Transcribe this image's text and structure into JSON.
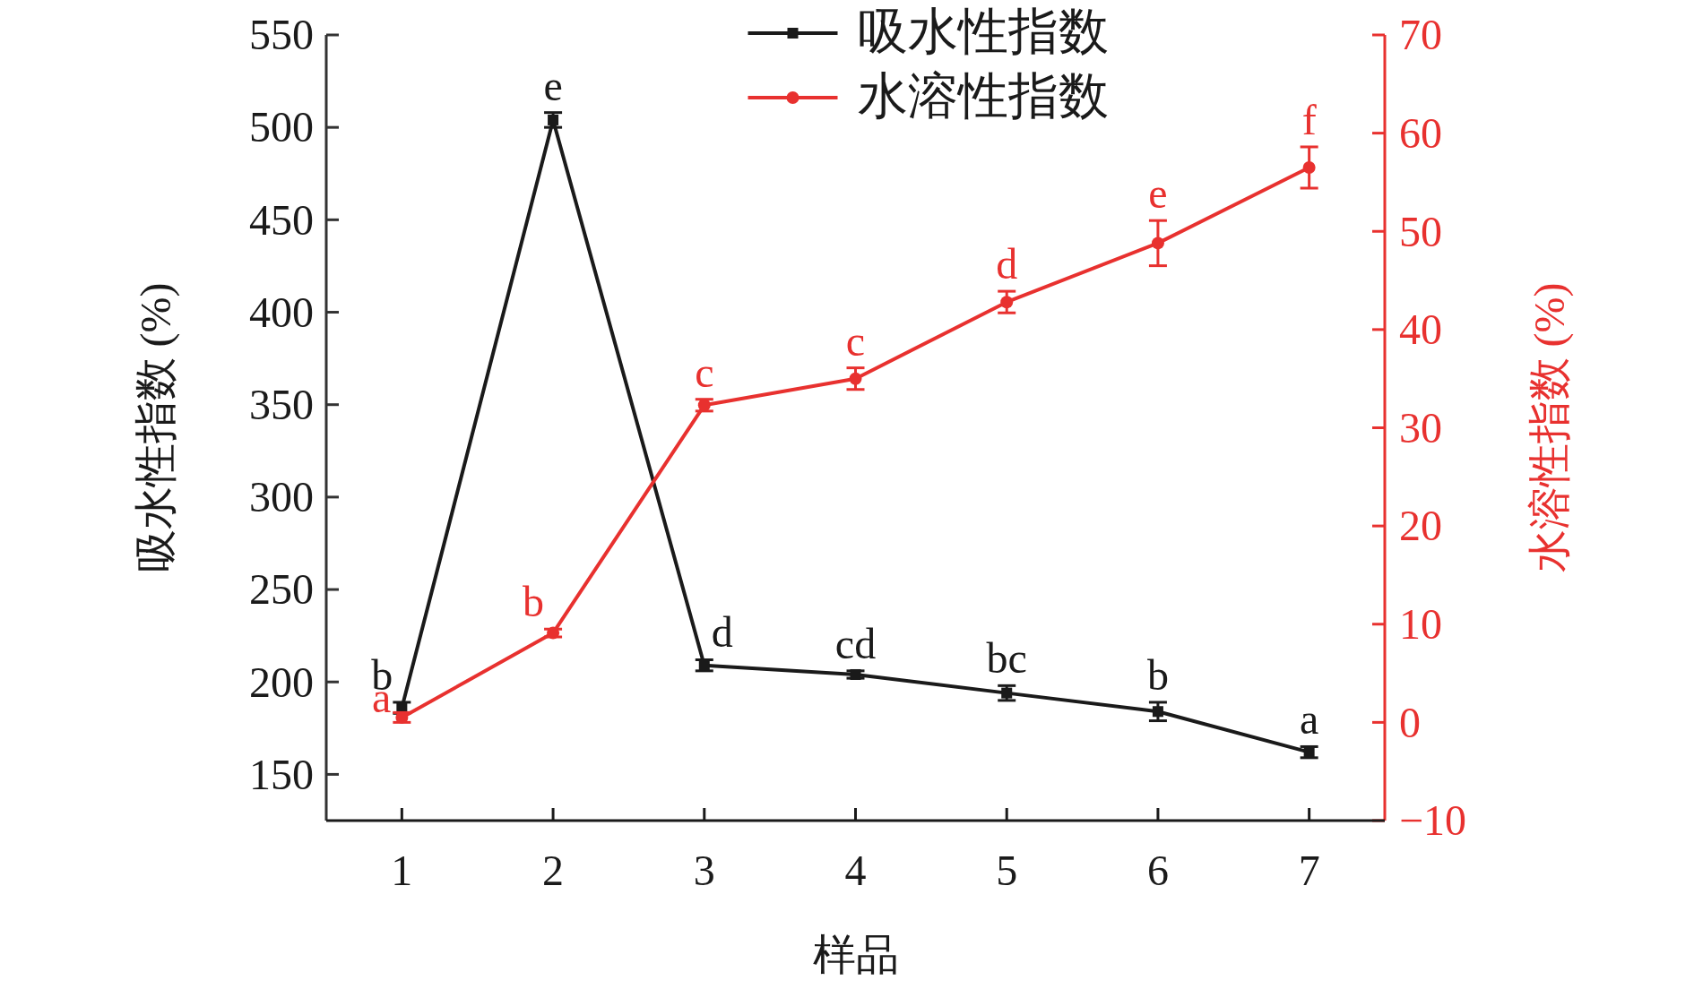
{
  "chart_data": {
    "type": "line",
    "xlabel": "样品",
    "ylabel": "吸水性指数 (%)",
    "y2label": "水溶性指数 (%)",
    "categories": [
      "1",
      "2",
      "3",
      "4",
      "5",
      "6",
      "7"
    ],
    "ylim": [
      125,
      550
    ],
    "yticks": [
      150,
      200,
      250,
      300,
      350,
      400,
      450,
      500,
      550
    ],
    "y2lim": [
      -10,
      70
    ],
    "y2ticks": [
      -10,
      0,
      10,
      20,
      30,
      40,
      50,
      60,
      70
    ],
    "legend": "top",
    "grid": false,
    "series": [
      {
        "name": "吸水性指数",
        "color": "#1a1a1a",
        "marker": "square",
        "values": [
          186,
          504,
          209,
          204,
          194,
          184,
          162
        ],
        "errors": [
          3,
          4,
          3,
          2,
          4,
          5,
          3
        ],
        "value_labels": [
          "b",
          "e",
          "d",
          "cd",
          "bc",
          "b",
          "a"
        ]
      },
      {
        "name": "水溶性指数",
        "color": "#e8312f",
        "marker": "circle",
        "axis": "y2",
        "values": [
          0.5,
          9.1,
          32.3,
          35,
          42.8,
          48.8,
          56.5
        ],
        "errors": [
          0.5,
          0.4,
          0.6,
          1.1,
          1.1,
          2.3,
          2.1
        ],
        "value_labels": [
          "a",
          "b",
          "c",
          "c",
          "d",
          "e",
          "f"
        ]
      }
    ]
  }
}
